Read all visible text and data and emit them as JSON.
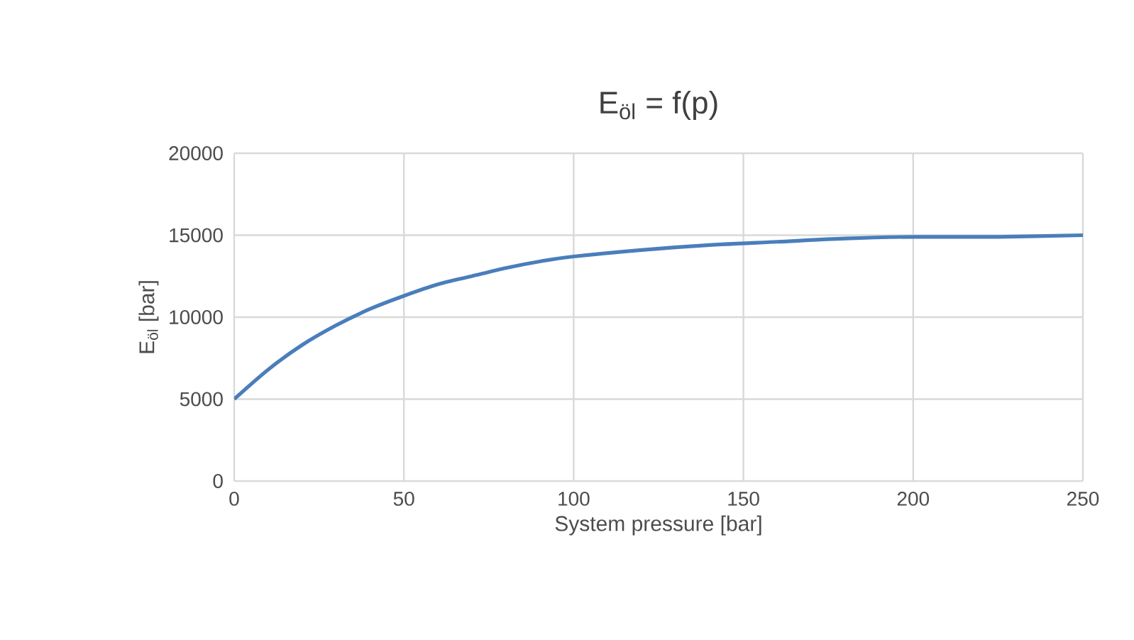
{
  "chart_data": {
    "type": "line",
    "title": "E$_{öl}$ = f(p)",
    "xlabel": "System pressure [bar]",
    "ylabel": "E$_{öl}$ [bar]",
    "x": [
      0,
      10,
      20,
      30,
      40,
      50,
      60,
      70,
      80,
      90,
      100,
      120,
      140,
      160,
      180,
      200,
      225,
      250
    ],
    "series": [
      {
        "color": "#4a7ebb",
        "values": [
          5000,
          6800,
          8300,
          9500,
          10500,
          11300,
          12000,
          12500,
          13000,
          13400,
          13700,
          14100,
          14400,
          14600,
          14800,
          14900,
          14900,
          15000
        ]
      }
    ],
    "xlim": [
      0,
      250
    ],
    "xticks": [
      0,
      50,
      100,
      150,
      200,
      250
    ],
    "ylim": [
      0,
      20000
    ],
    "yticks": [
      0,
      5000,
      10000,
      15000,
      20000
    ],
    "grid": true,
    "marker": "none",
    "line_style": "solid"
  }
}
